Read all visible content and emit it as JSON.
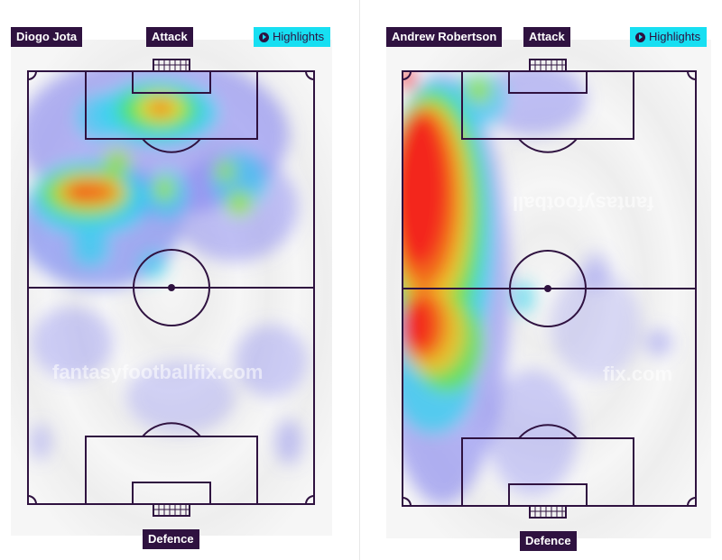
{
  "left_panel": {
    "player_name": "Diogo Jota",
    "top_label": "Attack",
    "bottom_label": "Defence",
    "highlights_label": "Highlights",
    "watermark": "fantasyfootballfix.com"
  },
  "right_panel": {
    "player_name": "Andrew Robertson",
    "top_label": "Attack",
    "bottom_label": "Defence",
    "highlights_label": "Highlights",
    "watermark_top": "fantasyfootball",
    "watermark_bottom": "fix.com"
  },
  "colors": {
    "label_bg": "#2f1240",
    "highlight_bg": "#17dff2",
    "pitch_line": "#2f1240",
    "pitch_bg": "#f1f1f1"
  }
}
